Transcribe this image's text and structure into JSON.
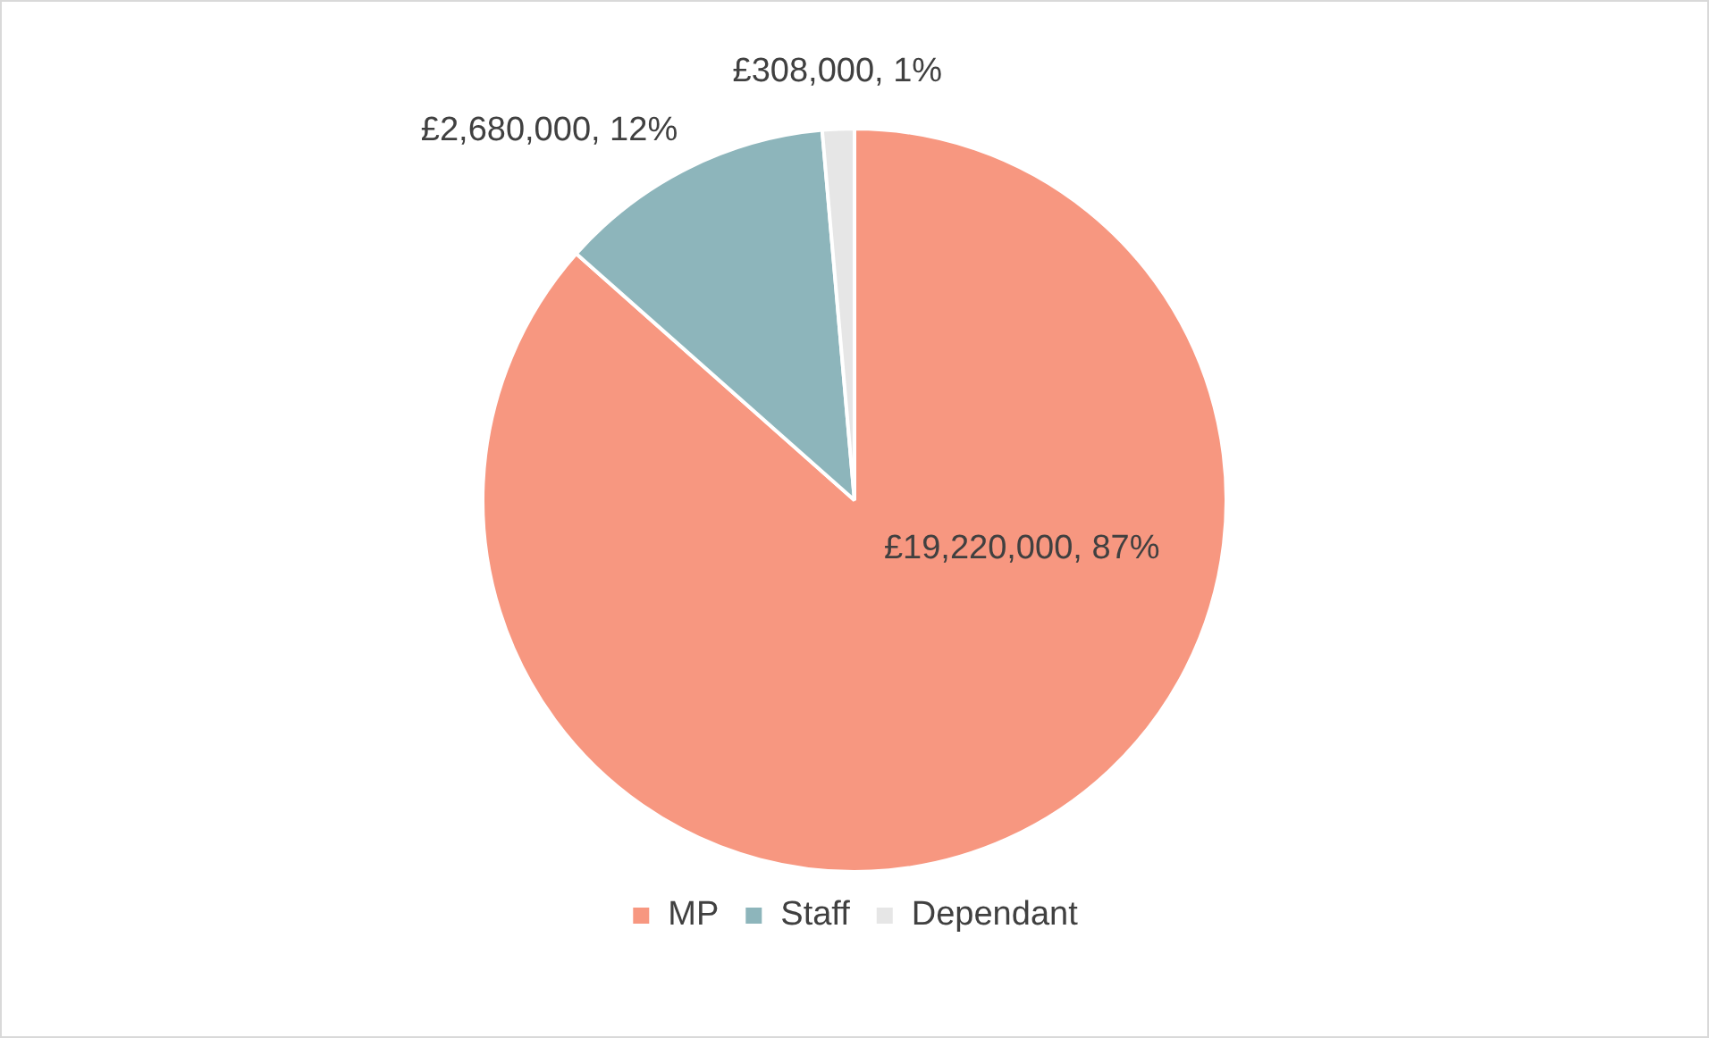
{
  "chart_data": {
    "type": "pie",
    "categories": [
      "MP",
      "Staff",
      "Dependant"
    ],
    "values": [
      19220000,
      2680000,
      308000
    ],
    "colors": [
      "#f79780",
      "#8db5bb",
      "#e6e6e6"
    ],
    "value_labels": [
      "£19,220,000, 87%",
      "£2,680,000, 12%",
      "£308,000, 1%"
    ],
    "legend": "bottom"
  }
}
